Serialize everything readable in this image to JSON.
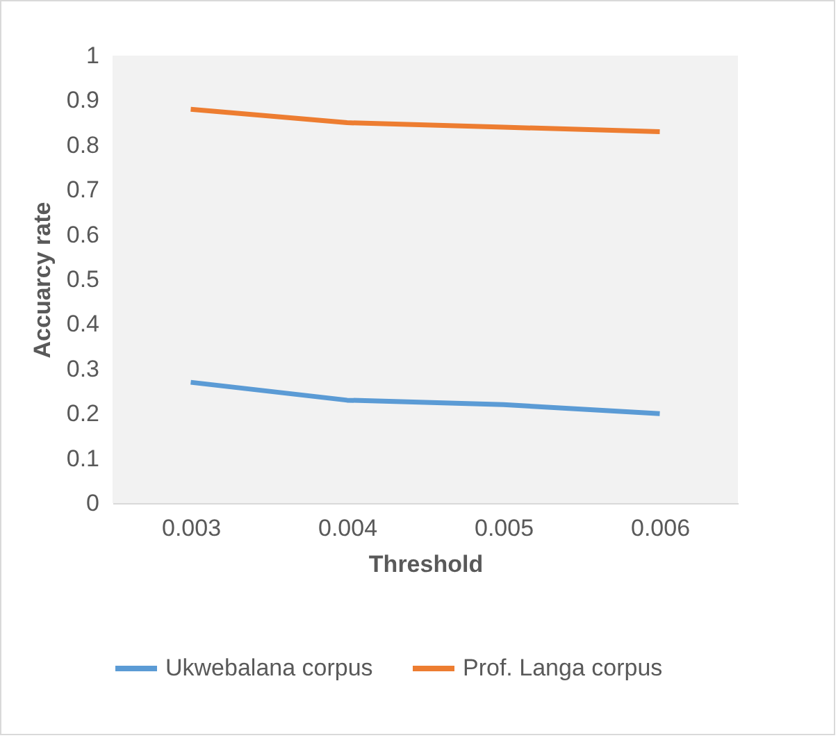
{
  "chart_data": {
    "type": "line",
    "xlabel": "Threshold",
    "ylabel": "Accuarcy rate",
    "categories": [
      "0.003",
      "0.004",
      "0.005",
      "0.006"
    ],
    "series": [
      {
        "name": "Ukwebalana corpus",
        "color": "#5b9bd5",
        "values": [
          0.27,
          0.23,
          0.22,
          0.2
        ]
      },
      {
        "name": "Prof. Langa corpus",
        "color": "#ed7d31",
        "values": [
          0.88,
          0.85,
          0.84,
          0.83
        ]
      }
    ],
    "ylim": [
      0,
      1
    ],
    "yticks": [
      0,
      0.1,
      0.2,
      0.3,
      0.4,
      0.5,
      0.6,
      0.7,
      0.8,
      0.9,
      1
    ],
    "legend": "bottom",
    "marker": "none",
    "line_style": "solid"
  }
}
